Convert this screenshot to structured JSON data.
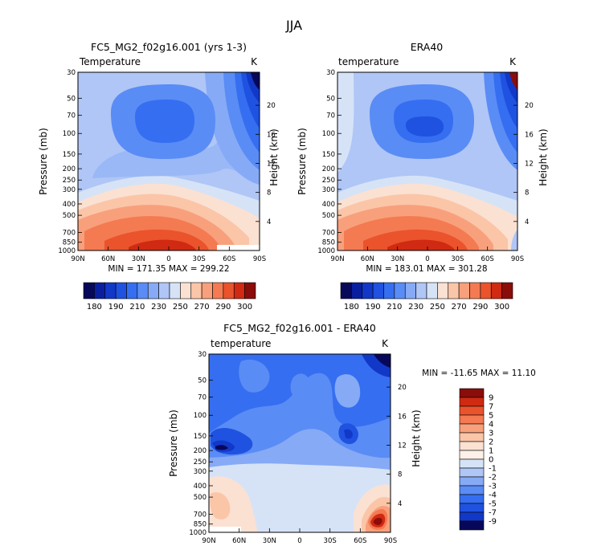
{
  "figure": {
    "season": "JJA"
  },
  "panels": [
    {
      "key": "model",
      "title": "FC5_MG2_f02g16.001 (yrs 1-3)",
      "field_label": "Temperature",
      "unit": "K",
      "ylabel": "Pressure (mb)",
      "ylabel_right": "Height (km)",
      "x_ticks": [
        "90N",
        "60N",
        "30N",
        "0",
        "30S",
        "60S",
        "90S"
      ],
      "y_ticks": [
        "30",
        "50",
        "70",
        "100",
        "150",
        "200",
        "250",
        "300",
        "400",
        "500",
        "700",
        "850",
        "1000"
      ],
      "height_ticks": [
        "20",
        "16",
        "12",
        "8",
        "4"
      ],
      "minmax_text": "MIN = 171.35   MAX = 299.22"
    },
    {
      "key": "obs",
      "title": "ERA40",
      "field_label": "temperature",
      "unit": "K",
      "ylabel": "Pressure (mb)",
      "ylabel_right": "Height (km)",
      "x_ticks": [
        "90N",
        "60N",
        "30N",
        "0",
        "30S",
        "60S",
        "90S"
      ],
      "y_ticks": [
        "30",
        "50",
        "70",
        "100",
        "150",
        "200",
        "250",
        "300",
        "400",
        "500",
        "700",
        "850",
        "1000"
      ],
      "height_ticks": [
        "20",
        "16",
        "12",
        "8",
        "4"
      ],
      "minmax_text": "MIN = 183.01   MAX = 301.28"
    },
    {
      "key": "diff",
      "title": "FC5_MG2_f02g16.001 - ERA40",
      "field_label": "temperature",
      "unit": "K",
      "ylabel": "Pressure (mb)",
      "ylabel_right": "Height (km)",
      "x_ticks": [
        "90N",
        "60N",
        "30N",
        "0",
        "30S",
        "60S",
        "90S"
      ],
      "y_ticks": [
        "30",
        "50",
        "70",
        "100",
        "150",
        "200",
        "250",
        "300",
        "400",
        "500",
        "700",
        "850",
        "1000"
      ],
      "height_ticks": [
        "20",
        "16",
        "12",
        "8",
        "4"
      ],
      "minmax_text": "MIN = -11.65   MAX =  11.10"
    }
  ],
  "colorbars": {
    "abs": {
      "labels": [
        "180",
        "190",
        "210",
        "230",
        "250",
        "270",
        "290",
        "300"
      ],
      "colors": [
        "#08085a",
        "#0a1fa0",
        "#1238c8",
        "#1f52e0",
        "#356ef0",
        "#5a8cf5",
        "#86aaf6",
        "#afc6f6",
        "#d6e3f7",
        "#fbe1d2",
        "#fbc5a8",
        "#f8a07c",
        "#f47a52",
        "#ea532c",
        "#d02a12",
        "#8a0d0a"
      ]
    },
    "diff": {
      "labels": [
        "9",
        "7",
        "5",
        "4",
        "3",
        "2",
        "1",
        "0",
        "-1",
        "-2",
        "-3",
        "-4",
        "-5",
        "-7",
        "-9"
      ],
      "colors": [
        "#8a0d0a",
        "#d02a12",
        "#ea532c",
        "#f47a52",
        "#f8a07c",
        "#fbc5a8",
        "#fbe1d2",
        "#fcf0e8",
        "#d6e3f7",
        "#afc6f6",
        "#86aaf6",
        "#5a8cf5",
        "#356ef0",
        "#1f52e0",
        "#1238c8",
        "#08085a"
      ]
    }
  },
  "chart_data": [
    {
      "type": "heatmap",
      "title": "FC5_MG2_f02g16.001 (yrs 1-3)",
      "field": "Temperature",
      "unit": "K",
      "x": [
        "90N",
        "60N",
        "30N",
        "0",
        "30S",
        "60S",
        "90S"
      ],
      "y": [
        30,
        50,
        70,
        100,
        150,
        200,
        250,
        300,
        400,
        500,
        700,
        850,
        1000
      ],
      "ylabel": "Pressure (mb)",
      "ylabel_right": "Height (km)",
      "height_ticks_km": [
        20,
        16,
        12,
        8,
        4
      ],
      "contour_levels": [
        180,
        190,
        210,
        230,
        250,
        270,
        290,
        300
      ],
      "min": 171.35,
      "max": 299.22
    },
    {
      "type": "heatmap",
      "title": "ERA40",
      "field": "temperature",
      "unit": "K",
      "x": [
        "90N",
        "60N",
        "30N",
        "0",
        "30S",
        "60S",
        "90S"
      ],
      "y": [
        30,
        50,
        70,
        100,
        150,
        200,
        250,
        300,
        400,
        500,
        700,
        850,
        1000
      ],
      "ylabel": "Pressure (mb)",
      "ylabel_right": "Height (km)",
      "height_ticks_km": [
        20,
        16,
        12,
        8,
        4
      ],
      "contour_levels": [
        180,
        190,
        210,
        230,
        250,
        270,
        290,
        300
      ],
      "min": 183.01,
      "max": 301.28
    },
    {
      "type": "heatmap",
      "title": "FC5_MG2_f02g16.001 - ERA40",
      "field": "temperature",
      "unit": "K",
      "x": [
        "90N",
        "60N",
        "30N",
        "0",
        "30S",
        "60S",
        "90S"
      ],
      "y": [
        30,
        50,
        70,
        100,
        150,
        200,
        250,
        300,
        400,
        500,
        700,
        850,
        1000
      ],
      "ylabel": "Pressure (mb)",
      "ylabel_right": "Height (km)",
      "height_ticks_km": [
        20,
        16,
        12,
        8,
        4
      ],
      "contour_levels": [
        -9,
        -7,
        -5,
        -4,
        -3,
        -2,
        -1,
        0,
        1,
        2,
        3,
        4,
        5,
        7,
        9
      ],
      "min": -11.65,
      "max": 11.1
    }
  ]
}
